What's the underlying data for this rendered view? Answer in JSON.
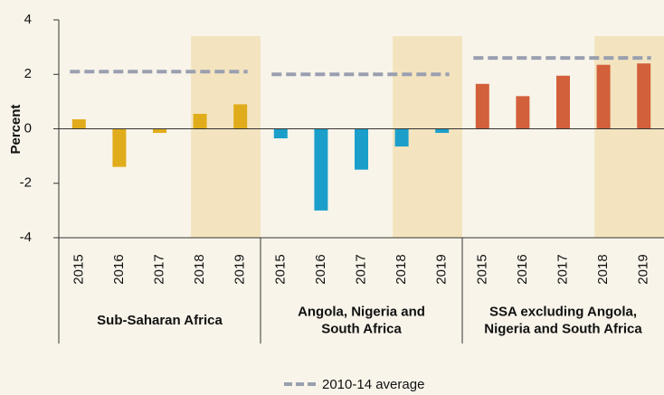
{
  "chart_data": {
    "type": "bar",
    "y_label": "Percent",
    "ylim": [
      -4,
      4
    ],
    "yticks": [
      -4,
      -2,
      0,
      2,
      4
    ],
    "legend": "2010-14 average",
    "average_color": "#9a9fb0",
    "highlight_color": "#f3e4bf",
    "groups": [
      {
        "label": [
          "Sub-Saharan Africa"
        ],
        "color": "#e1ac1c",
        "categories": [
          "2015",
          "2016",
          "2017",
          "2018",
          "2019"
        ],
        "values": [
          0.35,
          -1.4,
          -0.15,
          0.55,
          0.9
        ],
        "average": 2.1
      },
      {
        "label": [
          "Angola, Nigeria and",
          "South Africa"
        ],
        "color": "#1b9fca",
        "categories": [
          "2015",
          "2016",
          "2017",
          "2018",
          "2019"
        ],
        "values": [
          -0.35,
          -3.0,
          -1.5,
          -0.65,
          -0.15
        ],
        "average": 2.0
      },
      {
        "label": [
          "SSA excluding  Angola,",
          "Nigeria and South Africa"
        ],
        "color": "#d2603a",
        "categories": [
          "2015",
          "2016",
          "2017",
          "2018",
          "2019"
        ],
        "values": [
          1.65,
          1.2,
          1.95,
          2.35,
          2.4
        ],
        "average": 2.6
      }
    ]
  }
}
